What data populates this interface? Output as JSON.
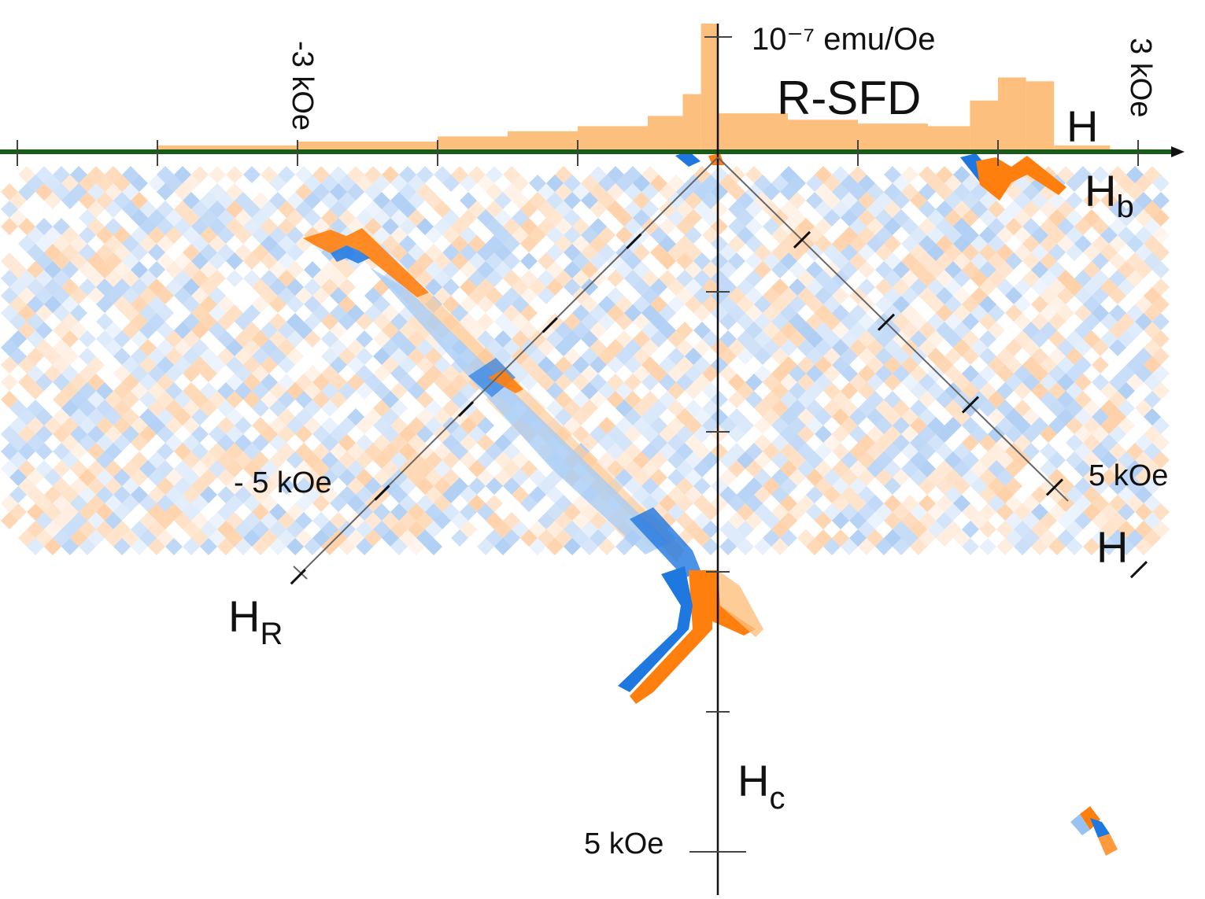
{
  "chart_data": {
    "type": "heatmap",
    "title": "R-SFD",
    "colors": {
      "positive": "#ff7f0e",
      "negative": "#1f77e0",
      "axis_green": "#1a5a1a",
      "histogram": "#fdbf7d"
    },
    "labels": {
      "unit": "10⁻⁷ emu/Oe",
      "h_axis": "H",
      "hb_axis": "H",
      "hb_sub": "b",
      "h_diag": "H",
      "hr_axis": "H",
      "hr_sub": "R",
      "hc_axis": "H",
      "hc_sub": "c",
      "top_left_tick": "-3 kOe",
      "top_right_tick": "3 kOe",
      "hr_tick": "- 5 kOe",
      "h_tick": "5 kOe",
      "hc_tick": "5 kOe"
    },
    "h_axis": {
      "range_kOe": [
        -5,
        3
      ],
      "ticks_kOe": [
        -5,
        -4,
        -3,
        -2,
        -1,
        0,
        1,
        2,
        3
      ]
    },
    "hc_axis": {
      "range_kOe": [
        0,
        5
      ],
      "ticks_kOe": [
        1,
        2,
        3,
        4,
        5
      ]
    },
    "hr_axis": {
      "range_kOe": [
        -5,
        0
      ],
      "ticks_kOe": [
        -1,
        -2,
        -3,
        -4,
        -5
      ]
    },
    "histogram": {
      "unit": "10⁻⁷ emu/Oe",
      "bins": [
        {
          "h": -5.0,
          "v": 0.02
        },
        {
          "h": -4.0,
          "v": 0.05
        },
        {
          "h": -3.0,
          "v": 0.08
        },
        {
          "h": -2.0,
          "v": 0.12
        },
        {
          "h": -1.5,
          "v": 0.16
        },
        {
          "h": -1.0,
          "v": 0.2
        },
        {
          "h": -0.5,
          "v": 0.28
        },
        {
          "h": -0.25,
          "v": 0.45
        },
        {
          "h": -0.12,
          "v": 1.0
        },
        {
          "h": 0.0,
          "v": 0.3
        },
        {
          "h": 0.5,
          "v": 0.25
        },
        {
          "h": 1.0,
          "v": 0.22
        },
        {
          "h": 1.5,
          "v": 0.2
        },
        {
          "h": 1.8,
          "v": 0.4
        },
        {
          "h": 2.0,
          "v": 0.58
        },
        {
          "h": 2.2,
          "v": 0.55
        },
        {
          "h": 2.4,
          "v": 0.05
        },
        {
          "h": 2.8,
          "v": 0.02
        }
      ]
    },
    "features": [
      {
        "name": "negative-branch-ridge",
        "hb_kOe": -2.7,
        "hc_kOe": 0.6,
        "sign": "positive"
      },
      {
        "name": "central-peak",
        "hb_kOe": 0.0,
        "hc_kOe": 3.0,
        "sign": "positive"
      },
      {
        "name": "central-peak-shoulder",
        "hb_kOe": -0.3,
        "hc_kOe": 3.4,
        "sign": "negative"
      },
      {
        "name": "positive-branch-peak",
        "hb_kOe": 2.2,
        "hc_kOe": 0.2,
        "sign": "positive"
      },
      {
        "name": "isolated-spot",
        "hb_kOe": 2.8,
        "hc_kOe": 5.0,
        "sign": "positive"
      }
    ]
  }
}
